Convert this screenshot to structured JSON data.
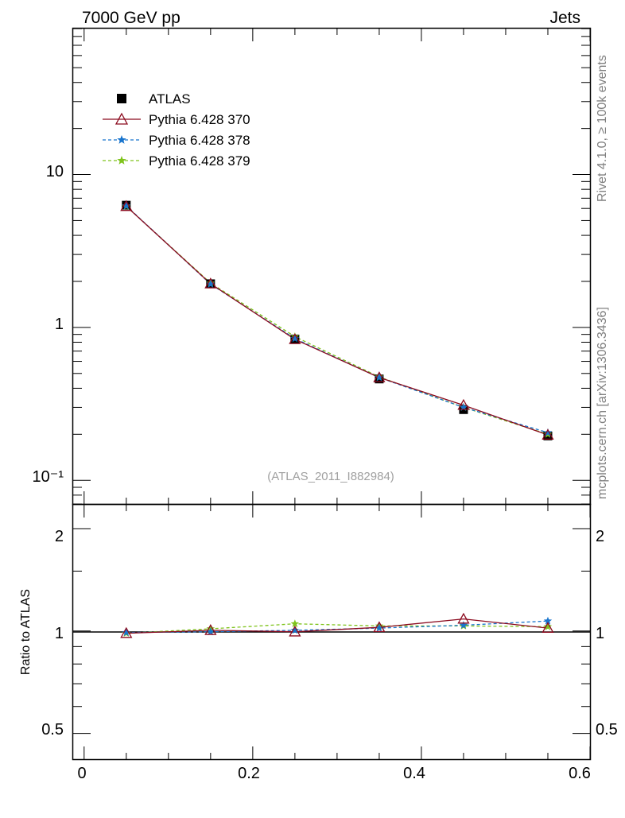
{
  "header": {
    "left_title": "7000 GeV pp",
    "right_title": "Jets"
  },
  "side_labels": {
    "rivet": "Rivet 4.1.0, ≥ 100k events",
    "mcplots": "mcplots.cern.ch [arXiv:1306.3436]"
  },
  "analysis_label": "(ATLAS_2011_I882984)",
  "colors": {
    "atlas": "#000000",
    "p370": "#8b0a1e",
    "p378": "#1874cd",
    "p379": "#7fc31c",
    "analysis_label": "#a0a0a0",
    "side_label": "#808080"
  },
  "chart_data": [
    {
      "type": "line",
      "panel": "main",
      "yscale": "log",
      "xlim": [
        -0.013,
        0.6
      ],
      "ylim": [
        0.07,
        90
      ],
      "xlabel": "",
      "ylabel": "",
      "y_tick_labels": [
        "10⁻¹",
        "1",
        "10"
      ],
      "legend_position": "top-left",
      "x": [
        0.05,
        0.15,
        0.25,
        0.35,
        0.45,
        0.55
      ],
      "series": [
        {
          "name": "ATLAS",
          "values": [
            6.3,
            1.93,
            0.84,
            0.46,
            0.29,
            0.195
          ],
          "style": "filled-square-markers"
        },
        {
          "name": "Pythia 6.428 370",
          "values": [
            6.2,
            1.93,
            0.835,
            0.47,
            0.31,
            0.198
          ],
          "style": "solid-line-open-triangle"
        },
        {
          "name": "Pythia 6.428 378",
          "values": [
            6.24,
            1.92,
            0.845,
            0.47,
            0.3,
            0.205
          ],
          "style": "dashed-line-star"
        },
        {
          "name": "Pythia 6.428 379",
          "values": [
            6.2,
            1.95,
            0.87,
            0.475,
            0.3,
            0.2
          ],
          "style": "dashed-line-star"
        }
      ]
    },
    {
      "type": "line",
      "panel": "ratio",
      "yscale": "log",
      "xlim": [
        -0.013,
        0.6
      ],
      "ylim": [
        0.42,
        2.35
      ],
      "ylabel": "Ratio to ATLAS",
      "y_tick_labels": [
        "0.5",
        "1",
        "2"
      ],
      "x_tick_labels": [
        "0",
        "0.2",
        "0.4",
        "0.6"
      ],
      "x": [
        0.05,
        0.15,
        0.25,
        0.35,
        0.45,
        0.55
      ],
      "series": [
        {
          "name": "Pythia 6.428 370",
          "values": [
            0.985,
            1.005,
            0.995,
            1.025,
            1.085,
            1.02
          ]
        },
        {
          "name": "Pythia 6.428 378",
          "values": [
            0.99,
            0.995,
            1.005,
            1.02,
            1.04,
            1.07
          ]
        },
        {
          "name": "Pythia 6.428 379",
          "values": [
            0.985,
            1.015,
            1.05,
            1.035,
            1.035,
            1.03
          ]
        }
      ]
    }
  ]
}
